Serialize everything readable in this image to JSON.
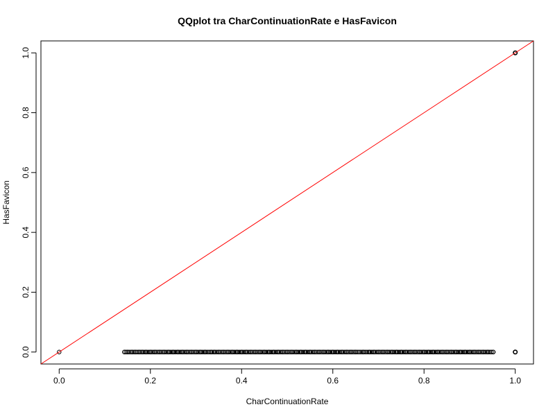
{
  "chart_data": {
    "type": "scatter",
    "title": "QQplot tra CharContinuationRate e HasFavicon",
    "xlabel": "CharContinuationRate",
    "ylabel": "HasFavicon",
    "xlim": [
      -0.04,
      1.04
    ],
    "ylim": [
      -0.04,
      1.04
    ],
    "xticks": [
      0.0,
      0.2,
      0.4,
      0.6,
      0.8,
      1.0
    ],
    "yticks": [
      0.0,
      0.2,
      0.4,
      0.6,
      0.8,
      1.0
    ],
    "x_tick_labels": [
      "0.0",
      "0.2",
      "0.4",
      "0.6",
      "0.8",
      "1.0"
    ],
    "y_tick_labels": [
      "0.0",
      "0.2",
      "0.4",
      "0.6",
      "0.8",
      "1.0"
    ],
    "grid": false,
    "point_color": "#000000",
    "line_color": "#ff0000",
    "reference_line": {
      "slope": 1,
      "intercept": 0
    },
    "points_y0_x_range": [
      0.143,
      0.952
    ],
    "points_y0_x_dense": [
      0.143,
      0.15,
      0.16,
      0.167,
      0.175,
      0.182,
      0.19,
      0.2,
      0.21,
      0.22,
      0.23,
      0.24,
      0.25,
      0.26,
      0.27,
      0.28,
      0.29,
      0.3,
      0.31,
      0.32,
      0.333,
      0.34,
      0.35,
      0.36,
      0.37,
      0.38,
      0.39,
      0.4,
      0.41,
      0.42,
      0.43,
      0.44,
      0.45,
      0.46,
      0.47,
      0.48,
      0.49,
      0.5,
      0.51,
      0.52,
      0.53,
      0.54,
      0.55,
      0.56,
      0.57,
      0.58,
      0.59,
      0.6,
      0.61,
      0.62,
      0.63,
      0.64,
      0.65,
      0.667,
      0.68,
      0.69,
      0.7,
      0.71,
      0.72,
      0.73,
      0.74,
      0.75,
      0.76,
      0.77,
      0.78,
      0.79,
      0.8,
      0.81,
      0.82,
      0.83,
      0.84,
      0.85,
      0.86,
      0.87,
      0.88,
      0.89,
      0.9,
      0.91,
      0.92,
      0.93,
      0.94,
      0.952
    ],
    "points_extra": [
      {
        "x": 0.0,
        "y": 0.0
      },
      {
        "x": 1.0,
        "y": 0.0
      },
      {
        "x": 1.0,
        "y": 1.0
      }
    ]
  }
}
